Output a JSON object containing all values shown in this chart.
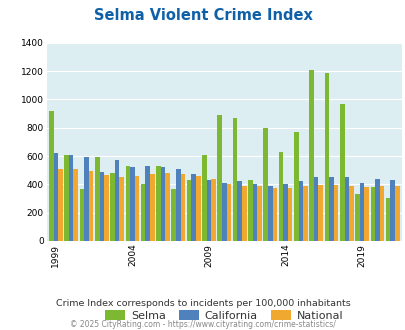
{
  "title": "Selma Violent Crime Index",
  "subtitle": "Crime Index corresponds to incidents per 100,000 inhabitants",
  "footer": "© 2025 CityRating.com - https://www.cityrating.com/crime-statistics/",
  "years": [
    1999,
    2000,
    2001,
    2002,
    2003,
    2004,
    2005,
    2006,
    2007,
    2008,
    2009,
    2010,
    2011,
    2012,
    2013,
    2014,
    2015,
    2016,
    2017,
    2018,
    2019,
    2020,
    2021
  ],
  "selma": [
    920,
    610,
    370,
    590,
    480,
    530,
    400,
    530,
    370,
    430,
    610,
    890,
    870,
    430,
    800,
    630,
    770,
    1210,
    1185,
    970,
    330,
    380,
    300
  ],
  "california": [
    625,
    608,
    596,
    490,
    575,
    520,
    530,
    520,
    510,
    470,
    430,
    410,
    420,
    400,
    390,
    400,
    420,
    450,
    450,
    450,
    410,
    440,
    430
  ],
  "national": [
    505,
    510,
    495,
    465,
    450,
    460,
    470,
    480,
    470,
    460,
    440,
    400,
    390,
    390,
    375,
    375,
    385,
    395,
    395,
    390,
    380,
    390,
    385
  ],
  "selma_color": "#7db832",
  "california_color": "#4f81bd",
  "national_color": "#f0a830",
  "bg_color": "#ddeef3",
  "title_color": "#1060a8",
  "subtitle_color": "#333333",
  "footer_color": "#888888",
  "ylim": [
    0,
    1400
  ],
  "yticks": [
    0,
    200,
    400,
    600,
    800,
    1000,
    1200,
    1400
  ],
  "tick_years": [
    1999,
    2004,
    2009,
    2014,
    2019
  ]
}
